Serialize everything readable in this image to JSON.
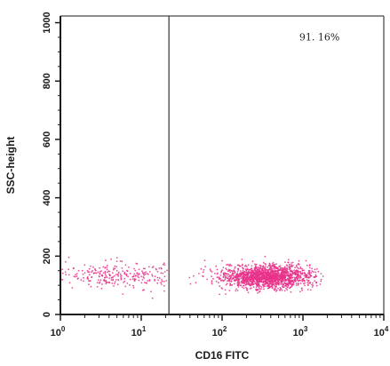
{
  "chart_data": {
    "type": "scatter",
    "title": "",
    "xlabel": "CD16 FITC",
    "ylabel": "SSC-height",
    "xscale": "log",
    "xlim": [
      1,
      10000
    ],
    "ylim": [
      0,
      1023
    ],
    "grid": false,
    "x_ticks": [
      {
        "value": 1,
        "base": "10",
        "exp": "0"
      },
      {
        "value": 10,
        "base": "10",
        "exp": "1"
      },
      {
        "value": 100,
        "base": "10",
        "exp": "2"
      },
      {
        "value": 1000,
        "base": "10",
        "exp": "3"
      },
      {
        "value": 10000,
        "base": "10",
        "exp": "4"
      }
    ],
    "y_ticks": [
      {
        "value": 0,
        "label": "0"
      },
      {
        "value": 200,
        "label": "200"
      },
      {
        "value": 400,
        "label": "400"
      },
      {
        "value": 600,
        "label": "600"
      },
      {
        "value": 800,
        "label": "800"
      },
      {
        "value": 1000,
        "label": "1000"
      }
    ],
    "gate_x": 22,
    "annotation": {
      "text": "91. 16%",
      "x": 1600,
      "y": 940
    },
    "point_color": "#e8338a",
    "clusters": [
      {
        "n": 260,
        "log_x_mean": 0.8,
        "log_x_sd": 0.55,
        "y_mean": 135,
        "y_sd": 22,
        "log_x_min": 0.0,
        "log_x_max": 1.33
      },
      {
        "n": 1700,
        "log_x_mean": 2.55,
        "log_x_sd": 0.28,
        "y_mean": 130,
        "y_sd": 20,
        "log_x_min": 1.35,
        "log_x_max": 3.25
      }
    ]
  }
}
